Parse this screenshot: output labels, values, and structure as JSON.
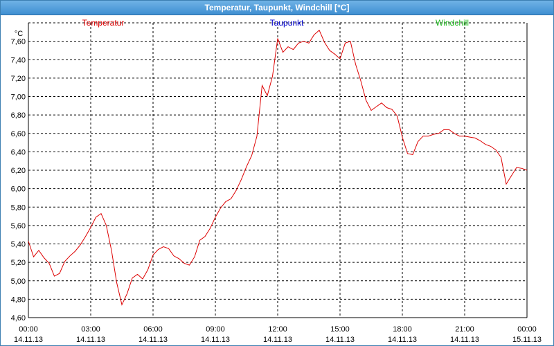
{
  "window": {
    "title": "Temperatur, Taupunkt, Windchill [°C]"
  },
  "colors": {
    "temperatur": "#dd0000",
    "taupunkt": "#0000cc",
    "windchill": "#22bb22"
  },
  "chart_data": {
    "type": "line",
    "ylabel": "°C",
    "ylim": [
      4.6,
      7.8
    ],
    "yticks": [
      "4,60",
      "4,80",
      "5,00",
      "5,20",
      "5,40",
      "5,60",
      "5,80",
      "6,00",
      "6,20",
      "6,40",
      "6,60",
      "6,80",
      "7,00",
      "7,20",
      "7,40",
      "7,60"
    ],
    "xlim": [
      0,
      24
    ],
    "xticks": [
      {
        "time": "00:00",
        "date": "14.11.13"
      },
      {
        "time": "03:00",
        "date": "14.11.13"
      },
      {
        "time": "06:00",
        "date": "14.11.13"
      },
      {
        "time": "09:00",
        "date": "14.11.13"
      },
      {
        "time": "12:00",
        "date": "14.11.13"
      },
      {
        "time": "15:00",
        "date": "14.11.13"
      },
      {
        "time": "18:00",
        "date": "14.11.13"
      },
      {
        "time": "21:00",
        "date": "14.11.13"
      },
      {
        "time": "00:00",
        "date": "15.11.13"
      }
    ],
    "legend": [
      "Temperatur",
      "Taupunkt",
      "Windchill"
    ],
    "grid": true,
    "series": [
      {
        "name": "Temperatur",
        "x": [
          0,
          0.25,
          0.5,
          0.75,
          1,
          1.25,
          1.5,
          1.75,
          2,
          2.25,
          2.5,
          2.75,
          3,
          3.25,
          3.5,
          3.75,
          4,
          4.25,
          4.5,
          4.75,
          5,
          5.25,
          5.5,
          5.75,
          6,
          6.25,
          6.5,
          6.75,
          7,
          7.25,
          7.5,
          7.75,
          8,
          8.25,
          8.5,
          8.75,
          9,
          9.25,
          9.5,
          9.75,
          10,
          10.25,
          10.5,
          10.75,
          11,
          11.25,
          11.5,
          11.75,
          12,
          12.25,
          12.5,
          12.75,
          13,
          13.25,
          13.5,
          13.75,
          14,
          14.25,
          14.5,
          14.75,
          15,
          15.25,
          15.5,
          15.75,
          16,
          16.25,
          16.5,
          16.75,
          17,
          17.25,
          17.5,
          17.75,
          18,
          18.25,
          18.5,
          18.75,
          19,
          19.25,
          19.5,
          19.75,
          20,
          20.25,
          20.5,
          20.75,
          21,
          21.25,
          21.5,
          21.75,
          22,
          22.25,
          22.5,
          22.75,
          23,
          23.25,
          23.5,
          23.75,
          24
        ],
        "y": [
          5.43,
          5.26,
          5.33,
          5.25,
          5.19,
          5.05,
          5.08,
          5.21,
          5.27,
          5.32,
          5.39,
          5.48,
          5.58,
          5.69,
          5.73,
          5.6,
          5.33,
          4.98,
          4.74,
          4.86,
          5.03,
          5.07,
          5.02,
          5.12,
          5.28,
          5.34,
          5.37,
          5.35,
          5.27,
          5.24,
          5.19,
          5.17,
          5.26,
          5.44,
          5.48,
          5.57,
          5.69,
          5.79,
          5.86,
          5.89,
          5.98,
          6.1,
          6.24,
          6.36,
          6.57,
          7.12,
          7.01,
          7.22,
          7.63,
          7.48,
          7.54,
          7.51,
          7.58,
          7.6,
          7.58,
          7.67,
          7.72,
          7.59,
          7.5,
          7.46,
          7.41,
          7.58,
          7.6,
          7.35,
          7.17,
          6.96,
          6.85,
          6.89,
          6.93,
          6.88,
          6.86,
          6.79,
          6.56,
          6.38,
          6.37,
          6.51,
          6.57,
          6.57,
          6.59,
          6.6,
          6.64,
          6.64,
          6.6,
          6.57,
          6.57,
          6.56,
          6.55,
          6.52,
          6.48,
          6.46,
          6.42,
          6.34,
          6.05,
          6.14,
          6.23,
          6.22,
          6.2
        ]
      }
    ]
  }
}
